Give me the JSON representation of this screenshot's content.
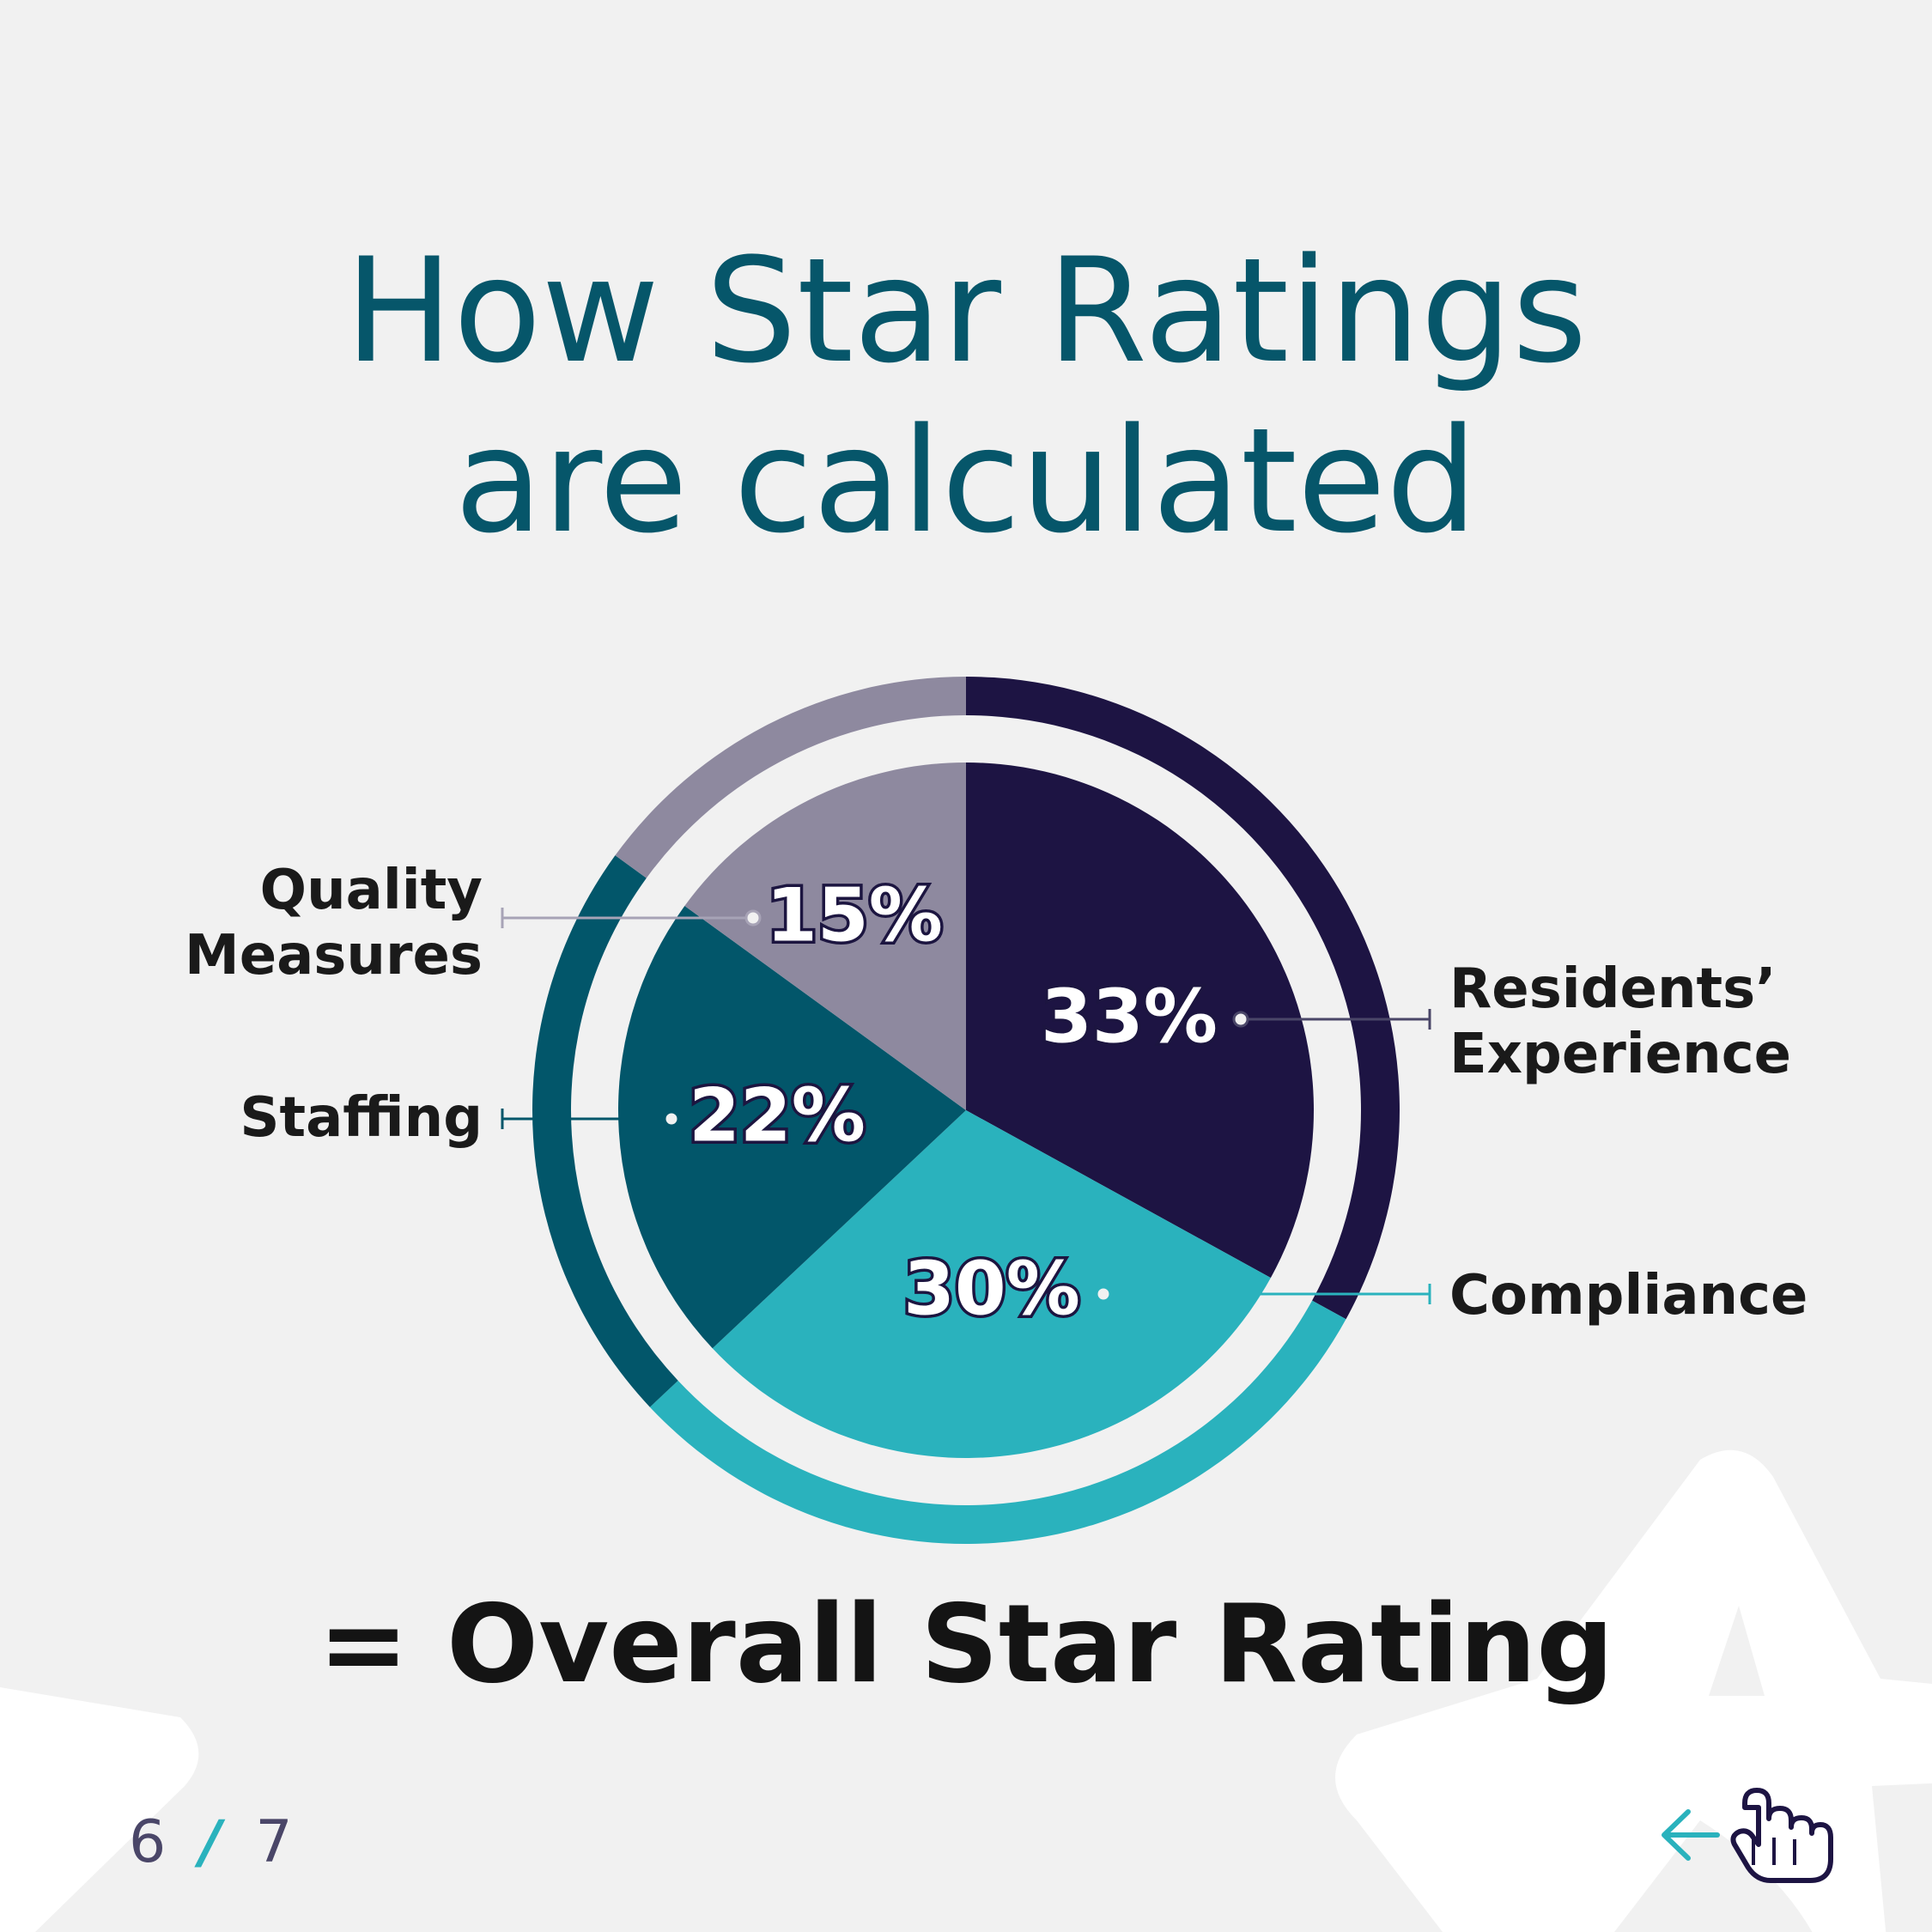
{
  "title": {
    "line1": "How Star Ratings",
    "line2": "are calculated"
  },
  "chart_data": {
    "type": "pie",
    "categories": [
      "Residents’ Experience",
      "Compliance",
      "Staffing",
      "Quality Measures"
    ],
    "values": [
      33,
      30,
      22,
      15
    ],
    "value_labels": [
      "33%",
      "30%",
      "22%",
      "15%"
    ],
    "colors": [
      "#1d1443",
      "#2ab2bd",
      "#02566a",
      "#8e899f"
    ],
    "label_lines": [
      [
        "Residents’",
        "Experience"
      ],
      [
        "Compliance"
      ],
      [
        "Staffing"
      ],
      [
        "Quality",
        "Measures"
      ]
    ]
  },
  "result": {
    "text": "= Overall Star Rating"
  },
  "pager": {
    "current": "6",
    "separator": "/",
    "total": "7"
  },
  "nav": {
    "back_icon": "arrow-left-icon",
    "tap_icon": "hand-pointer-icon"
  },
  "colors": {
    "background": "#f1f1f1",
    "title": "#06566a",
    "accent": "#2ab2bd"
  }
}
